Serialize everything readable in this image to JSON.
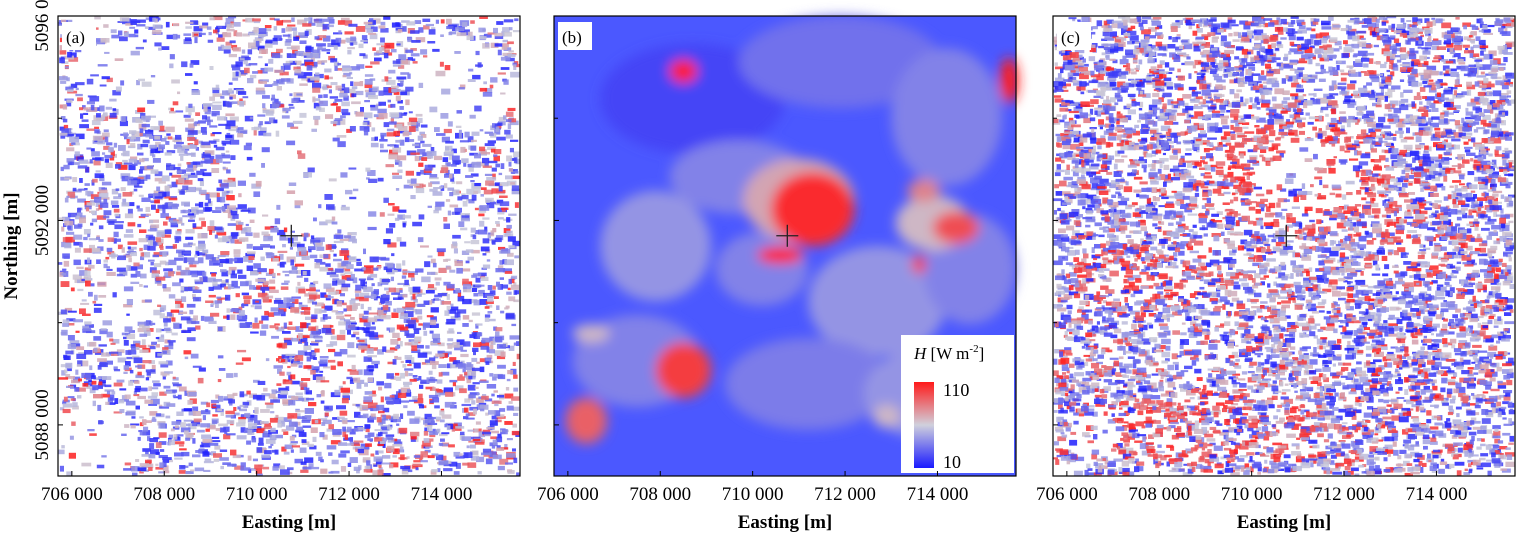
{
  "chart_data": [
    {
      "type": "heatmap",
      "panel_label": "(a)",
      "xlabel": "Easting [m]",
      "ylabel": "Northing [m]",
      "x_ticks": [
        "706 000",
        "708 000",
        "710 000",
        "712 000",
        "714 000"
      ],
      "x_tick_values": [
        706000,
        708000,
        710000,
        712000,
        714000
      ],
      "y_ticks": [
        "5096 000",
        "5092 000",
        "5088 000"
      ],
      "y_tick_values": [
        5096000,
        5092000,
        5088000
      ],
      "xlim": [
        705700,
        715700
      ],
      "ylim": [
        5087000,
        5096000
      ],
      "marker": {
        "x": 710750,
        "y": 5091700
      },
      "pattern": "fine patchy, large blank areas"
    },
    {
      "type": "heatmap",
      "panel_label": "(b)",
      "xlabel": "Easting [m]",
      "x_ticks": [
        "706 000",
        "708 000",
        "710 000",
        "712 000",
        "714 000"
      ],
      "x_tick_values": [
        706000,
        708000,
        710000,
        712000,
        714000
      ],
      "xlim": [
        705700,
        715700
      ],
      "ylim": [
        5087000,
        5096000
      ],
      "marker": {
        "x": 710750,
        "y": 5091700
      },
      "pattern": "smooth, blue background with red hotspots"
    },
    {
      "type": "heatmap",
      "panel_label": "(c)",
      "xlabel": "Easting [m]",
      "x_ticks": [
        "706 000",
        "708 000",
        "710 000",
        "712 000",
        "714 000"
      ],
      "x_tick_values": [
        706000,
        708000,
        710000,
        712000,
        714000
      ],
      "xlim": [
        705700,
        715700
      ],
      "ylim": [
        5087000,
        5096000
      ],
      "marker": {
        "x": 710750,
        "y": 5091700
      },
      "pattern": "fine patchy, denser coverage, red cluster near centre"
    }
  ],
  "colorbar": {
    "title_var": "H",
    "title_unit": "[W m",
    "title_exp": "-2",
    "title_close": "]",
    "max_label": "110",
    "min_label": "10",
    "range": [
      10,
      110
    ],
    "colors": {
      "low": "#1a1aff",
      "mid": "#c8c8d8",
      "high": "#ff1a1a"
    }
  }
}
